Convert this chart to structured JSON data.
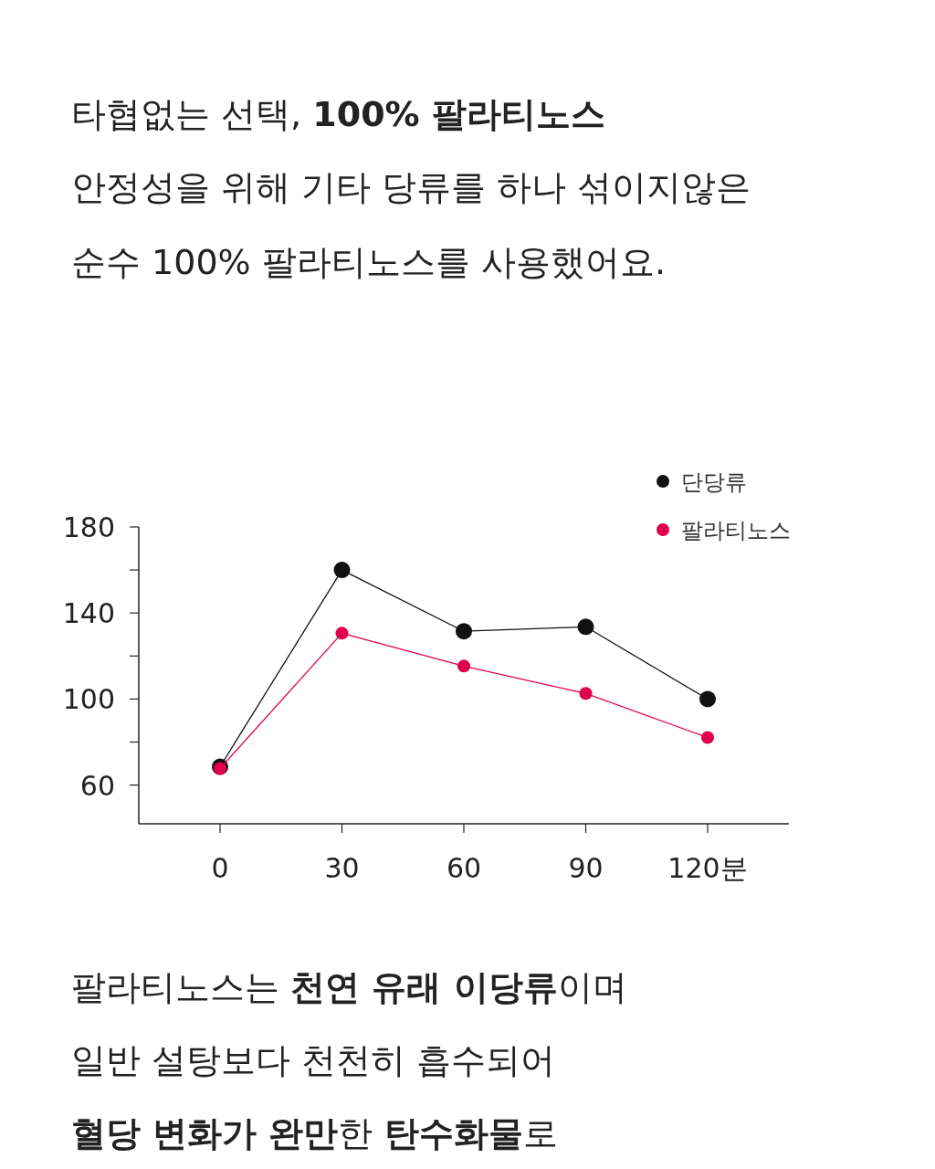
{
  "chart_data": {
    "type": "line",
    "title": "타협없는 선택, **100% 팔라티노스**",
    "subtitle": "안정성을 위해 기타 당류를 하나 섞이지않은\n순수 100% 팔라티노스를 사용했어요.",
    "x": [
      0,
      30,
      60,
      90,
      120
    ],
    "series": [
      {
        "name": "단당류",
        "color": "#111111",
        "values": [
          68.5,
          160,
          131.5,
          133.6,
          100
        ]
      },
      {
        "name": "팔라티노스",
        "color": "#e0004d",
        "values": [
          67.7,
          130.6,
          115.3,
          102.6,
          82.1
        ]
      }
    ],
    "xlim": [
      -20,
      140
    ],
    "xticks": [
      0,
      30,
      60,
      90,
      {
        "value": 120,
        "label": "120분"
      }
    ],
    "ylim": [
      42,
      180
    ],
    "yticks": [
      {
        "value": 60,
        "label": "60"
      },
      {
        "value": 80,
        "label": null
      },
      {
        "value": 100,
        "label": "100"
      },
      {
        "value": 120,
        "label": null
      },
      {
        "value": 140,
        "label": "140"
      },
      {
        "value": 160,
        "label": null
      },
      {
        "value": 180,
        "label": "180"
      }
    ],
    "marker": "circle",
    "legend": "top right",
    "grid": false,
    "annotations": [
      "팔라티노스는 **천연 유래 이당류**이며",
      "일반 설탕보다 천천히 흡수되어",
      "**혈당 변화가 완만**한 **탄수화물**로"
    ]
  }
}
